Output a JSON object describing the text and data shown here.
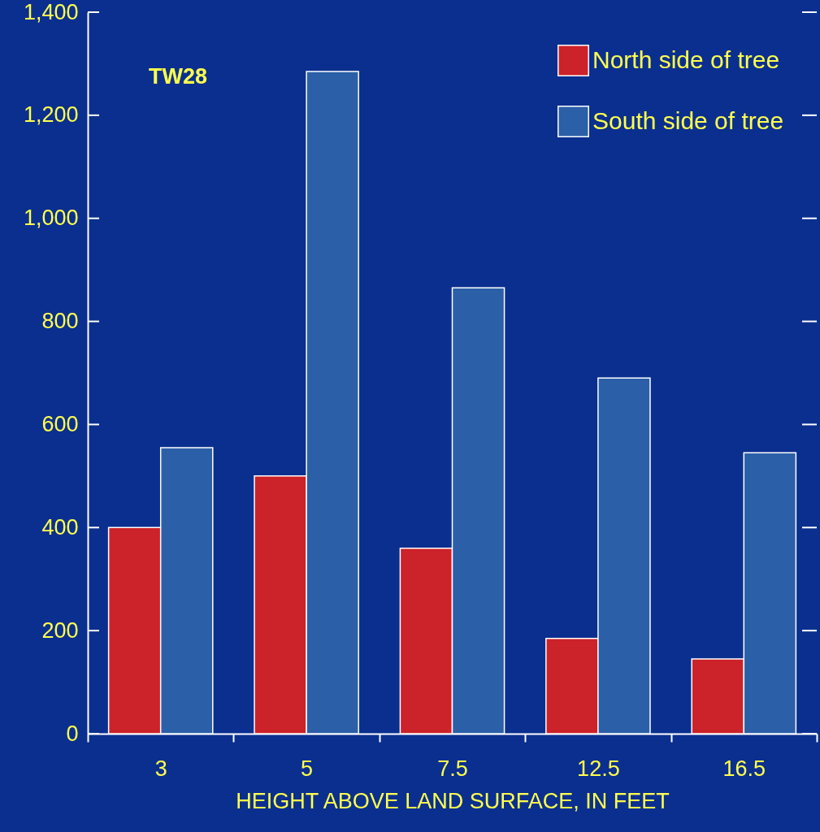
{
  "chart_data": {
    "type": "bar",
    "xlabel": "HEIGHT ABOVE LAND SURFACE, IN FEET",
    "categories": [
      "3",
      "5",
      "7.5",
      "12.5",
      "16.5"
    ],
    "series": [
      {
        "name": "North side of tree",
        "color": "#cc2229",
        "values": [
          400,
          500,
          360,
          185,
          145
        ]
      },
      {
        "name": "South side of tree",
        "color": "#2b5fa8",
        "values": [
          555,
          1285,
          865,
          690,
          545
        ]
      }
    ],
    "ylim": [
      0,
      1400
    ],
    "yticks": [
      {
        "value": 0,
        "label": "0"
      },
      {
        "value": 200,
        "label": "200"
      },
      {
        "value": 400,
        "label": "400"
      },
      {
        "value": 600,
        "label": "600"
      },
      {
        "value": 800,
        "label": "800"
      },
      {
        "value": 1000,
        "label": "1,000"
      },
      {
        "value": 1200,
        "label": "1,200"
      },
      {
        "value": 1400,
        "label": "1,400"
      }
    ],
    "annotations": [
      "TW28"
    ],
    "legend": "top right",
    "grid": false
  }
}
